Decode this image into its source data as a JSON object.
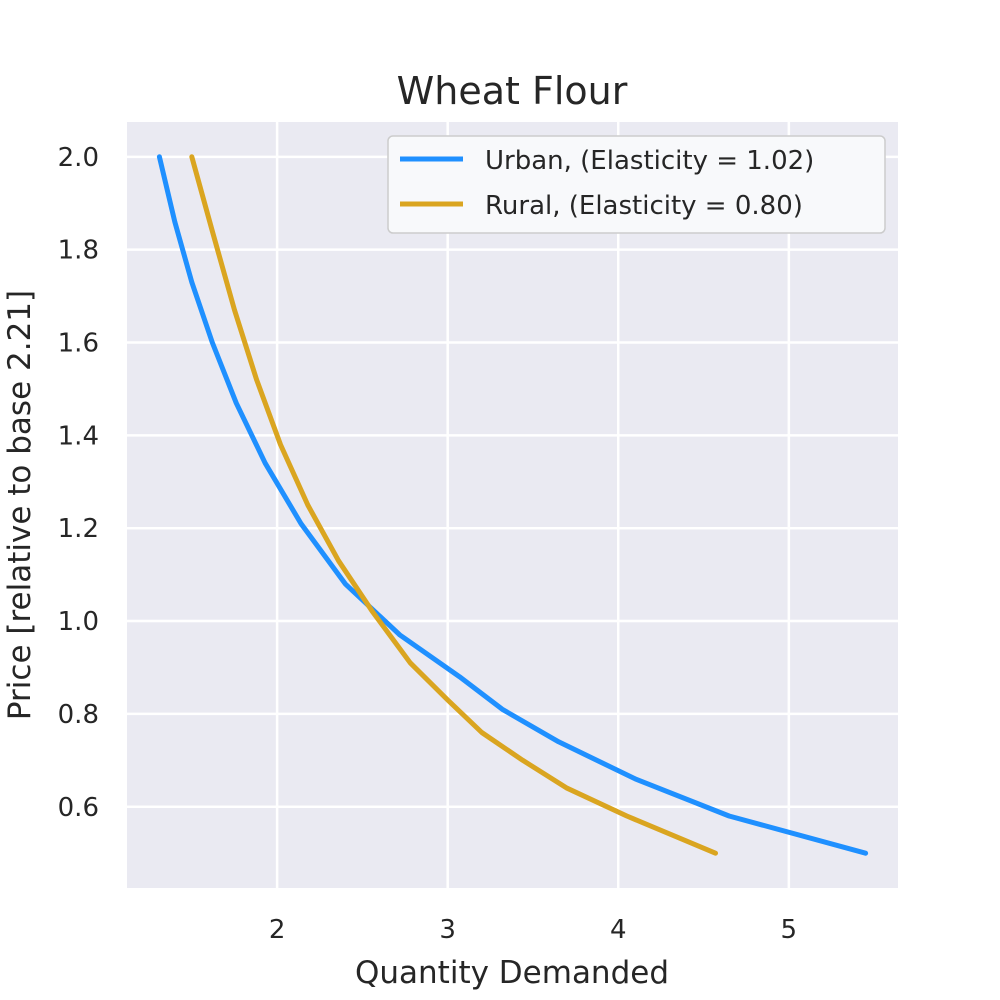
{
  "chart_data": {
    "type": "line",
    "title": "Wheat Flour",
    "xlabel": "Quantity Demanded",
    "ylabel": "Price [relative to base 2.21]",
    "xlim": [
      1.12,
      5.64
    ],
    "ylim": [
      0.425,
      2.075
    ],
    "xticks": [
      2,
      3,
      4,
      5
    ],
    "yticks": [
      0.6,
      0.8,
      1.0,
      1.2,
      1.4,
      1.6,
      1.8,
      2.0
    ],
    "ytick_labels": [
      "0.6",
      "0.8",
      "1.0",
      "1.2",
      "1.4",
      "1.6",
      "1.8",
      "2.0"
    ],
    "grid": true,
    "legend": "top-right",
    "background": "#eaeaf2",
    "series": [
      {
        "name": "Urban, (Elasticity = 1.02)",
        "color": "#1f90ff",
        "x": [
          1.31,
          1.4,
          1.5,
          1.62,
          1.76,
          1.93,
          2.14,
          2.4,
          2.72,
          3.07,
          3.32,
          3.65,
          4.1,
          4.65,
          5.45
        ],
        "y": [
          2.0,
          1.86,
          1.73,
          1.6,
          1.47,
          1.34,
          1.21,
          1.08,
          0.97,
          0.88,
          0.81,
          0.74,
          0.66,
          0.58,
          0.5
        ]
      },
      {
        "name": "Rural, (Elasticity = 0.80)",
        "color": "#daa520",
        "x": [
          1.5,
          1.62,
          1.75,
          1.88,
          2.02,
          2.18,
          2.36,
          2.56,
          2.78,
          3.0,
          3.2,
          3.44,
          3.7,
          4.05,
          4.57
        ],
        "y": [
          2.0,
          1.84,
          1.67,
          1.52,
          1.38,
          1.25,
          1.13,
          1.02,
          0.91,
          0.83,
          0.76,
          0.7,
          0.64,
          0.58,
          0.5
        ]
      }
    ]
  }
}
